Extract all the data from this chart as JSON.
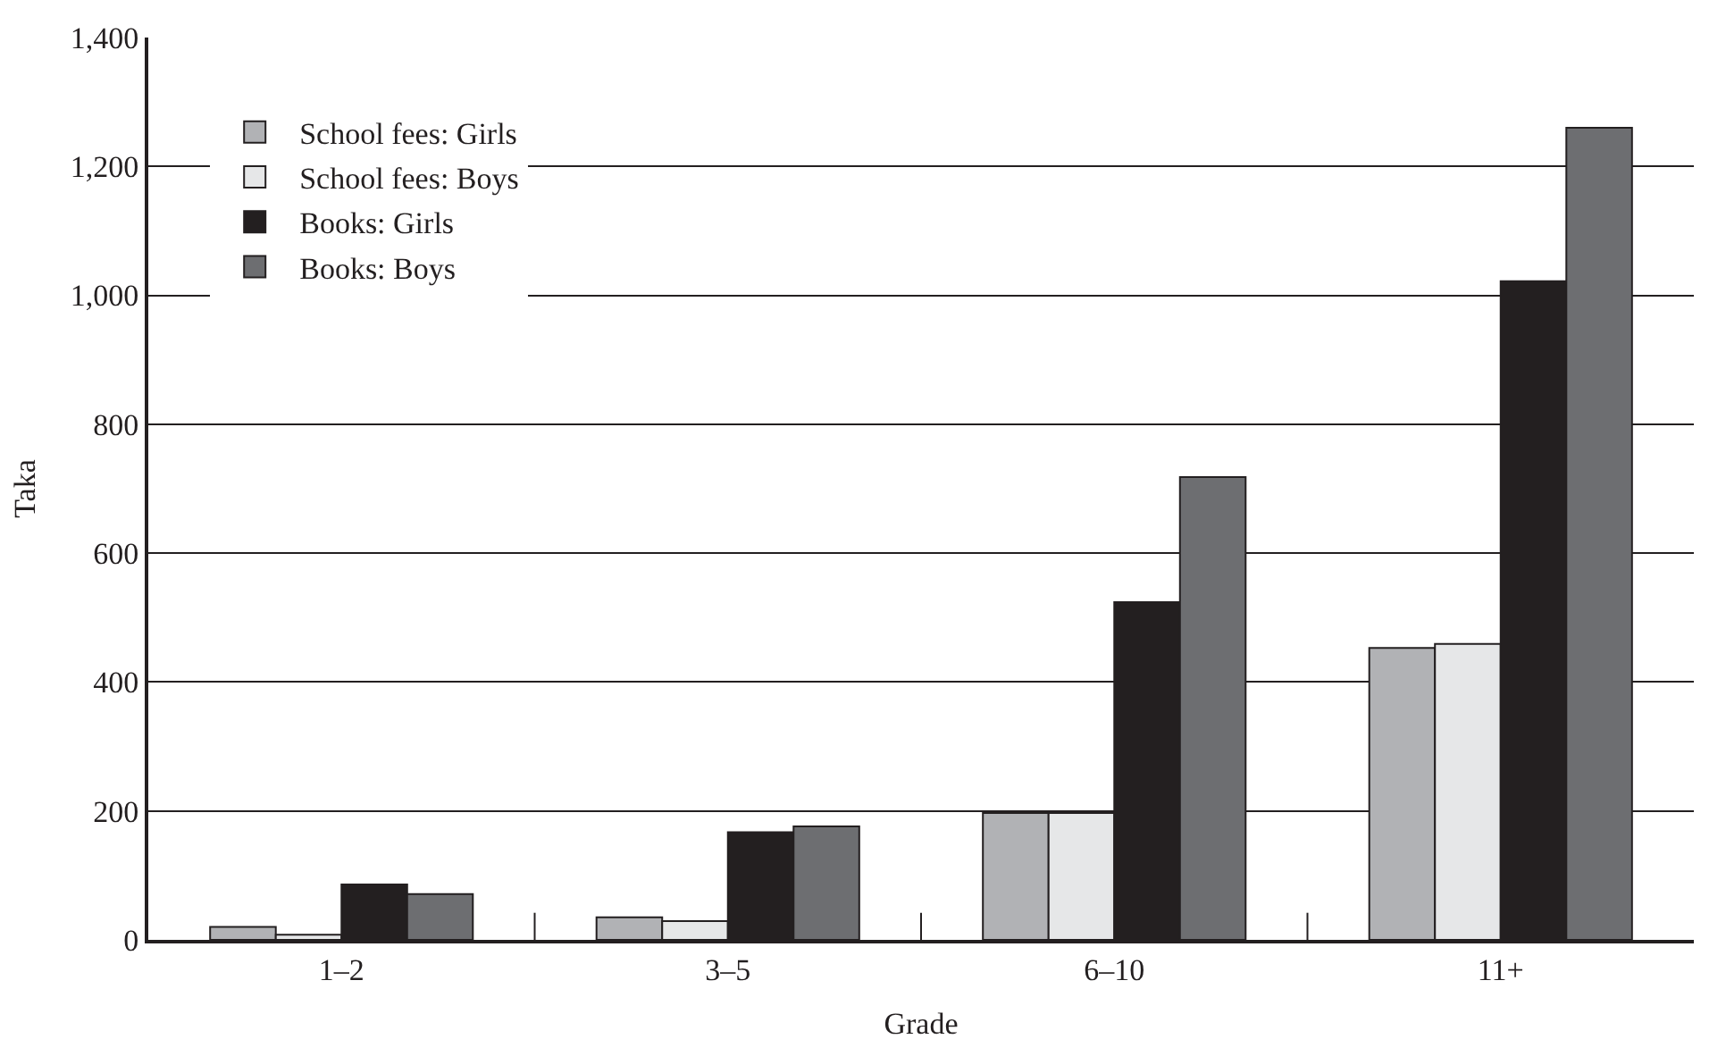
{
  "chart_data": {
    "type": "bar",
    "xlabel": "Grade",
    "ylabel": "Taka",
    "categories": [
      "1–2",
      "3–5",
      "6–10",
      "11+"
    ],
    "series": [
      {
        "name": "School fees: Girls",
        "color": "#b1b2b5",
        "values": [
          20,
          35,
          197,
          453
        ]
      },
      {
        "name": "School fees: Boys",
        "color": "#e6e7e8",
        "values": [
          8,
          29,
          197,
          459
        ]
      },
      {
        "name": "Books: Girls",
        "color": "#231f20",
        "values": [
          86,
          167,
          524,
          1022
        ]
      },
      {
        "name": "Books: Boys",
        "color": "#6d6e71",
        "values": [
          71,
          176,
          718,
          1260
        ]
      }
    ],
    "ylim": [
      0,
      1400
    ],
    "yticks": [
      0,
      200,
      400,
      600,
      800,
      {
        "value": 1000,
        "label": "1,000"
      },
      {
        "value": 1200,
        "label": "1,200"
      },
      {
        "value": 1400,
        "label": "1,400"
      }
    ],
    "grid": "y",
    "legend": "top left"
  }
}
